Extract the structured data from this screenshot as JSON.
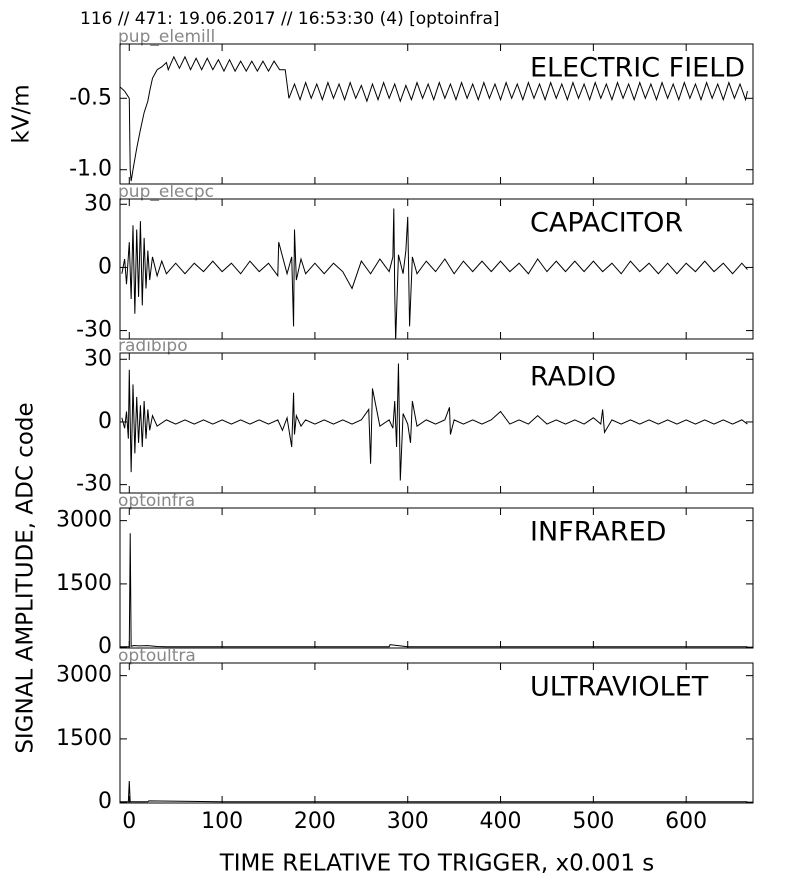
{
  "title": "116 // 471:   19.06.2017 // 16:53:30 (4)  [optoinfra]",
  "chart_data": [
    {
      "type": "line",
      "panel_label": "pup_elemill",
      "label": "ELECTRIC FIELD",
      "ylabel": "kV/m",
      "color": "#000000",
      "xlim": [
        -10,
        672
      ],
      "ylim": [
        -1.1,
        -0.12
      ],
      "yticks": [
        {
          "value": -1.0,
          "label": "-1.0"
        },
        -0.5
      ],
      "x": [
        -10,
        -5,
        -2,
        0,
        1,
        2,
        4,
        8,
        12,
        16,
        20,
        22,
        25,
        30,
        35,
        40,
        42,
        48,
        54,
        60,
        66,
        72,
        78,
        84,
        90,
        96,
        102,
        108,
        114,
        120,
        126,
        132,
        138,
        144,
        150,
        156,
        162,
        168,
        172,
        178,
        184,
        190,
        196,
        202,
        208,
        214,
        220,
        226,
        232,
        238,
        244,
        250,
        256,
        262,
        268,
        274,
        280,
        286,
        292,
        298,
        304,
        310,
        316,
        322,
        328,
        334,
        340,
        346,
        352,
        358,
        364,
        370,
        376,
        382,
        388,
        394,
        400,
        406,
        412,
        418,
        424,
        430,
        436,
        442,
        448,
        454,
        460,
        466,
        472,
        478,
        484,
        490,
        496,
        502,
        508,
        514,
        520,
        526,
        532,
        538,
        544,
        550,
        556,
        562,
        568,
        574,
        580,
        586,
        592,
        598,
        604,
        610,
        616,
        622,
        628,
        634,
        640,
        646,
        652,
        658,
        664,
        666
      ],
      "values": [
        -0.42,
        -0.45,
        -0.48,
        -0.5,
        -1.0,
        -1.08,
        -1.0,
        -0.85,
        -0.72,
        -0.6,
        -0.52,
        -0.45,
        -0.36,
        -0.3,
        -0.28,
        -0.25,
        -0.3,
        -0.21,
        -0.29,
        -0.21,
        -0.3,
        -0.22,
        -0.3,
        -0.22,
        -0.3,
        -0.23,
        -0.31,
        -0.23,
        -0.31,
        -0.24,
        -0.31,
        -0.24,
        -0.31,
        -0.24,
        -0.31,
        -0.24,
        -0.3,
        -0.3,
        -0.5,
        -0.4,
        -0.51,
        -0.39,
        -0.5,
        -0.4,
        -0.51,
        -0.39,
        -0.5,
        -0.4,
        -0.51,
        -0.39,
        -0.5,
        -0.41,
        -0.52,
        -0.4,
        -0.51,
        -0.39,
        -0.5,
        -0.4,
        -0.52,
        -0.41,
        -0.51,
        -0.39,
        -0.5,
        -0.4,
        -0.51,
        -0.39,
        -0.5,
        -0.4,
        -0.51,
        -0.39,
        -0.5,
        -0.4,
        -0.51,
        -0.39,
        -0.5,
        -0.4,
        -0.51,
        -0.39,
        -0.5,
        -0.4,
        -0.51,
        -0.39,
        -0.5,
        -0.4,
        -0.51,
        -0.39,
        -0.5,
        -0.4,
        -0.51,
        -0.39,
        -0.5,
        -0.4,
        -0.51,
        -0.39,
        -0.5,
        -0.4,
        -0.51,
        -0.39,
        -0.5,
        -0.4,
        -0.51,
        -0.39,
        -0.5,
        -0.4,
        -0.51,
        -0.39,
        -0.5,
        -0.4,
        -0.51,
        -0.39,
        -0.5,
        -0.4,
        -0.51,
        -0.39,
        -0.5,
        -0.4,
        -0.51,
        -0.39,
        -0.5,
        -0.4,
        -0.51,
        -0.45
      ]
    },
    {
      "type": "line",
      "panel_label": "pup_elecpc",
      "label": "CAPACITOR",
      "color": "#000000",
      "xlim": [
        -10,
        672
      ],
      "ylim": [
        -34,
        32.5
      ],
      "yticks": [
        -30,
        0,
        30
      ],
      "x": [
        -8,
        -5,
        -3,
        0,
        2,
        4,
        6,
        8,
        10,
        12,
        14,
        16,
        18,
        20,
        22,
        25,
        30,
        35,
        40,
        50,
        60,
        70,
        80,
        90,
        100,
        110,
        120,
        130,
        140,
        150,
        160,
        161,
        170,
        175,
        177,
        178,
        180,
        185,
        190,
        200,
        210,
        220,
        230,
        240,
        250,
        260,
        270,
        280,
        284,
        285,
        286,
        287,
        290,
        295,
        298,
        300,
        302,
        305,
        310,
        320,
        330,
        340,
        350,
        360,
        370,
        380,
        390,
        400,
        410,
        420,
        430,
        440,
        450,
        460,
        470,
        480,
        490,
        500,
        510,
        520,
        530,
        540,
        550,
        560,
        570,
        580,
        590,
        600,
        610,
        620,
        630,
        640,
        650,
        660,
        666
      ],
      "values": [
        -3,
        4,
        -8,
        12,
        -15,
        20,
        -22,
        18,
        -14,
        22,
        -18,
        14,
        -10,
        8,
        -6,
        5,
        -4,
        3,
        -3,
        2,
        -3,
        2,
        -2,
        3,
        -2,
        2,
        -3,
        3,
        -2,
        2,
        -4,
        12,
        -3,
        5,
        -28,
        18,
        -6,
        4,
        -3,
        2,
        -3,
        2,
        -2,
        -10,
        3,
        -3,
        4,
        -2,
        5,
        28,
        -12,
        -35,
        6,
        -3,
        8,
        24,
        -28,
        5,
        -3,
        3,
        -2,
        4,
        -3,
        3,
        -2,
        3,
        -2,
        3,
        -2,
        2,
        -3,
        4,
        -2,
        3,
        -2,
        3,
        -2,
        3,
        -2,
        2,
        -3,
        3,
        -2,
        2,
        -3,
        2,
        -3,
        2,
        -2,
        3,
        -2,
        2,
        -3,
        2,
        -1
      ]
    },
    {
      "type": "line",
      "panel_label": "radibipo",
      "label": "RADIO",
      "ylabel": "SIGNAL AMPLITUDE,  ADC code",
      "color": "#000000",
      "xlim": [
        -10,
        672
      ],
      "ylim": [
        -34,
        33
      ],
      "yticks": [
        -30,
        0,
        30
      ],
      "x": [
        -8,
        -5,
        -3,
        -1,
        0,
        2,
        4,
        6,
        8,
        10,
        12,
        14,
        16,
        18,
        20,
        22,
        25,
        30,
        40,
        50,
        60,
        70,
        80,
        90,
        100,
        110,
        120,
        130,
        140,
        150,
        160,
        165,
        170,
        175,
        177,
        178,
        180,
        185,
        190,
        200,
        210,
        220,
        230,
        240,
        250,
        258,
        260,
        262,
        270,
        280,
        284,
        286,
        288,
        290,
        292,
        295,
        300,
        303,
        305,
        310,
        320,
        330,
        340,
        345,
        346,
        350,
        360,
        370,
        380,
        390,
        400,
        410,
        420,
        430,
        440,
        450,
        460,
        470,
        480,
        490,
        500,
        508,
        510,
        512,
        520,
        530,
        540,
        550,
        560,
        570,
        580,
        590,
        600,
        610,
        620,
        630,
        640,
        650,
        660,
        666
      ],
      "values": [
        2,
        -3,
        5,
        -8,
        25,
        -24,
        18,
        -15,
        12,
        -10,
        8,
        -12,
        10,
        -8,
        6,
        -4,
        3,
        -2,
        1,
        -1,
        1,
        -1,
        1,
        -1,
        1,
        -1,
        1,
        -1,
        1,
        -1,
        1,
        -4,
        2,
        -12,
        14,
        -6,
        3,
        -2,
        1,
        -1,
        1,
        -1,
        1,
        -1,
        1,
        6,
        -20,
        16,
        -2,
        1,
        -3,
        10,
        -12,
        28,
        -28,
        4,
        -1,
        -10,
        10,
        -2,
        1,
        -1,
        1,
        7,
        -6,
        1,
        -1,
        1,
        -1,
        1,
        5,
        -1,
        1,
        -1,
        3,
        -1,
        1,
        -1,
        1,
        -1,
        2,
        -1,
        6,
        -5,
        1,
        -1,
        1,
        -1,
        1,
        -1,
        1,
        -1,
        1,
        -1,
        1,
        -1,
        1,
        -1,
        1,
        -1
      ]
    },
    {
      "type": "line",
      "panel_label": "optoinfra",
      "label": "INFRARED",
      "color": "#000000",
      "xlim": [
        -10,
        672
      ],
      "ylim": [
        -20,
        3300
      ],
      "yticks": [
        0,
        1500,
        3000
      ],
      "x": [
        -10,
        -3,
        0,
        1,
        2,
        5,
        10,
        20,
        30,
        40,
        100,
        200,
        280,
        281,
        300,
        400,
        500,
        600,
        666
      ],
      "values": [
        10,
        10,
        10,
        2700,
        20,
        40,
        30,
        35,
        15,
        10,
        10,
        10,
        10,
        60,
        10,
        10,
        10,
        10,
        10
      ]
    },
    {
      "type": "line",
      "panel_label": "optoultra",
      "label": "ULTRAVIOLET",
      "color": "#000000",
      "xlim": [
        -10,
        672
      ],
      "ylim": [
        -20,
        3300
      ],
      "yticks": [
        0,
        1500,
        3000
      ],
      "xticks": [
        0,
        100,
        200,
        300,
        400,
        500,
        600
      ],
      "xlabel": "TIME RELATIVE TO TRIGGER,   x0.001 s",
      "x": [
        -10,
        -1,
        0,
        1,
        5,
        20,
        21,
        100,
        666
      ],
      "values": [
        10,
        10,
        500,
        10,
        10,
        10,
        30,
        10,
        10
      ]
    }
  ]
}
